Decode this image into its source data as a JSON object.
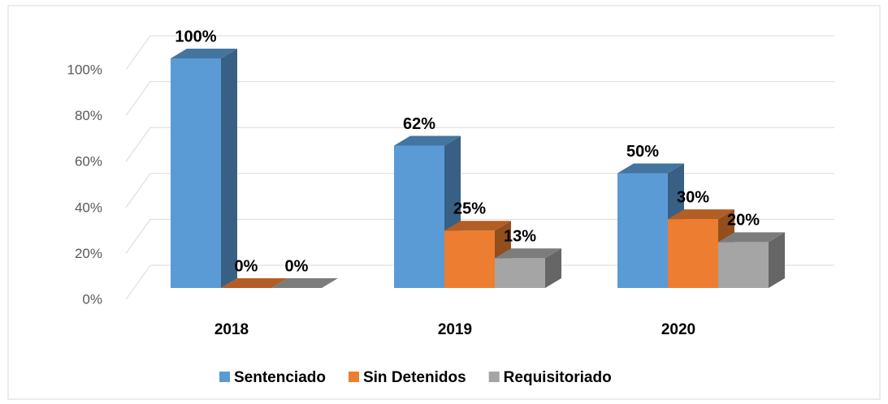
{
  "chart_data": {
    "type": "bar",
    "categories": [
      "2018",
      "2019",
      "2020"
    ],
    "series": [
      {
        "name": "Sentenciado",
        "color": "#5b9bd5",
        "values": [
          100,
          62,
          50
        ],
        "value_labels": [
          "100%",
          "62%",
          "50%"
        ]
      },
      {
        "name": "Sin Detenidos",
        "color": "#ed7d31",
        "values": [
          0,
          25,
          30
        ],
        "value_labels": [
          "0%",
          "25%",
          "30%"
        ]
      },
      {
        "name": "Requisitoriado",
        "color": "#a5a5a5",
        "values": [
          0,
          13,
          20
        ],
        "value_labels": [
          "0%",
          "13%",
          "20%"
        ]
      }
    ],
    "ylim": [
      0,
      100
    ],
    "yticks": [
      {
        "value": 0,
        "label": "0%"
      },
      {
        "value": 20,
        "label": "20%"
      },
      {
        "value": 40,
        "label": "40%"
      },
      {
        "value": 60,
        "label": "60%"
      },
      {
        "value": 80,
        "label": "80%"
      },
      {
        "value": 100,
        "label": "100%"
      }
    ],
    "grid": true,
    "legend": "bottom"
  }
}
